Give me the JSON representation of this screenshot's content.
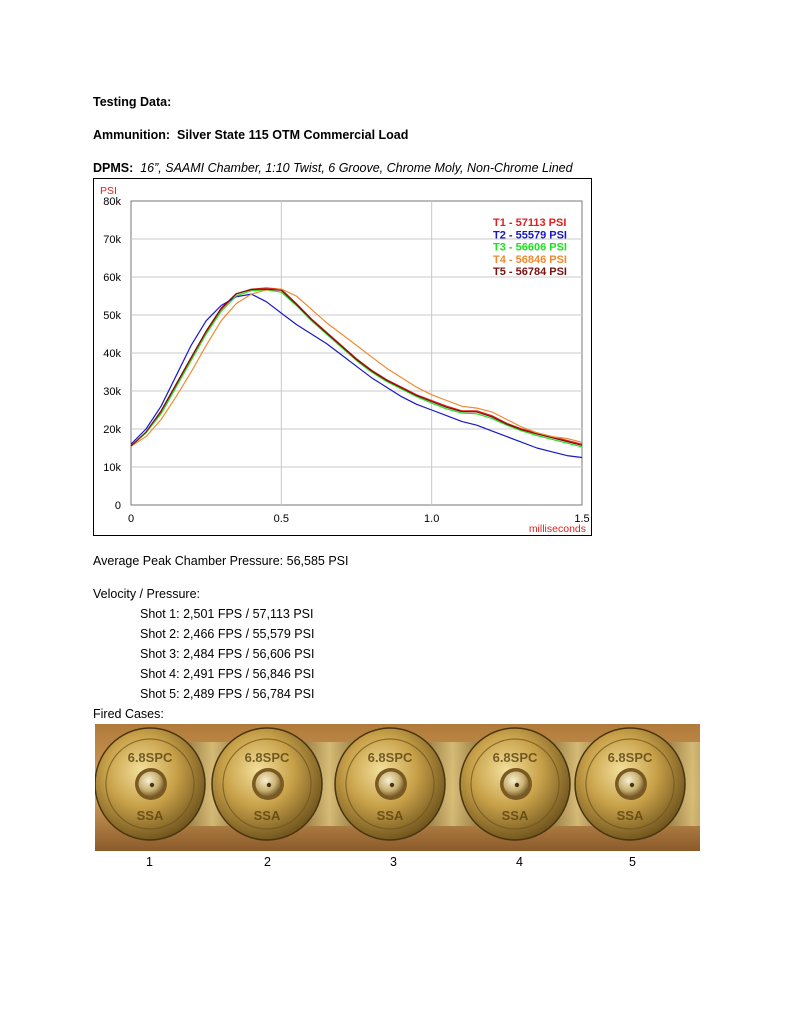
{
  "heading": "Testing Data:",
  "ammunition": {
    "label": "Ammunition:",
    "value": "Silver State 115 OTM Commercial Load"
  },
  "rifle": {
    "label": "DPMS:",
    "value": "16”, SAAMI Chamber, 1:10 Twist, 6 Groove, Chrome Moly, Non-Chrome Lined"
  },
  "chart_data": {
    "type": "line",
    "title": "",
    "ylabel": "PSI",
    "xlabel": "milliseconds",
    "xlim": [
      0,
      1.5
    ],
    "ylim": [
      0,
      80000
    ],
    "x_ticks": [
      "0",
      "0.5",
      "1.0",
      "1.5"
    ],
    "y_ticks": [
      "0",
      "10k",
      "20k",
      "30k",
      "40k",
      "50k",
      "60k",
      "70k",
      "80k"
    ],
    "grid": true,
    "legend_placement": "top-right",
    "series": [
      {
        "name": "T1 -  57113 PSI",
        "color": "#e02020",
        "x": [
          0,
          0.05,
          0.1,
          0.15,
          0.2,
          0.25,
          0.3,
          0.35,
          0.4,
          0.45,
          0.5,
          0.55,
          0.6,
          0.65,
          0.7,
          0.75,
          0.8,
          0.85,
          0.9,
          0.95,
          1.0,
          1.05,
          1.1,
          1.15,
          1.2,
          1.25,
          1.3,
          1.35,
          1.4,
          1.45,
          1.5
        ],
        "y": [
          15500,
          19000,
          24500,
          31500,
          38500,
          45500,
          51500,
          55500,
          56800,
          57100,
          56800,
          53000,
          49000,
          45500,
          42000,
          38500,
          35500,
          33000,
          31000,
          29000,
          27500,
          26000,
          24800,
          24800,
          23500,
          21500,
          20000,
          19000,
          18000,
          17000,
          16000
        ]
      },
      {
        "name": "T2 -  55579 PSI",
        "color": "#1818c8",
        "x": [
          0,
          0.05,
          0.1,
          0.15,
          0.2,
          0.25,
          0.3,
          0.35,
          0.4,
          0.45,
          0.5,
          0.55,
          0.6,
          0.65,
          0.7,
          0.75,
          0.8,
          0.85,
          0.9,
          0.95,
          1.0,
          1.05,
          1.1,
          1.15,
          1.2,
          1.25,
          1.3,
          1.35,
          1.4,
          1.45,
          1.5
        ],
        "y": [
          16000,
          20000,
          26000,
          34000,
          42000,
          48500,
          52500,
          54800,
          55500,
          53500,
          50500,
          47500,
          45000,
          42500,
          39500,
          36500,
          33500,
          31000,
          28500,
          26500,
          25000,
          23500,
          22000,
          21000,
          19500,
          18000,
          16500,
          15000,
          14000,
          13000,
          12500
        ]
      },
      {
        "name": "T3 -  56606 PSI",
        "color": "#20e020",
        "x": [
          0,
          0.05,
          0.1,
          0.15,
          0.2,
          0.25,
          0.3,
          0.35,
          0.4,
          0.45,
          0.5,
          0.55,
          0.6,
          0.65,
          0.7,
          0.75,
          0.8,
          0.85,
          0.9,
          0.95,
          1.0,
          1.05,
          1.1,
          1.15,
          1.2,
          1.25,
          1.3,
          1.35,
          1.4,
          1.45,
          1.5
        ],
        "y": [
          15500,
          19000,
          24000,
          31000,
          38000,
          45000,
          51000,
          55000,
          56400,
          56600,
          56000,
          52500,
          48500,
          45000,
          41500,
          38000,
          35000,
          32500,
          30500,
          28500,
          26800,
          25300,
          24200,
          24000,
          22800,
          21000,
          19500,
          18300,
          17300,
          16300,
          15300
        ]
      },
      {
        "name": "T4 -  56846 PSI",
        "color": "#f08a30",
        "x": [
          0,
          0.05,
          0.1,
          0.15,
          0.2,
          0.25,
          0.3,
          0.35,
          0.4,
          0.45,
          0.5,
          0.55,
          0.6,
          0.65,
          0.7,
          0.75,
          0.8,
          0.85,
          0.9,
          0.95,
          1.0,
          1.05,
          1.1,
          1.15,
          1.2,
          1.25,
          1.3,
          1.35,
          1.4,
          1.45,
          1.5
        ],
        "y": [
          15500,
          18000,
          22500,
          28500,
          35000,
          42000,
          48500,
          53000,
          55500,
          56600,
          56846,
          55000,
          51500,
          48000,
          45000,
          42000,
          39000,
          36000,
          33500,
          31000,
          29000,
          27500,
          26000,
          25500,
          24500,
          22500,
          20500,
          19000,
          18000,
          17500,
          16500
        ]
      },
      {
        "name": "T5 -  56784 PSI",
        "color": "#7a1010",
        "x": [
          0,
          0.05,
          0.1,
          0.15,
          0.2,
          0.25,
          0.3,
          0.35,
          0.4,
          0.45,
          0.5,
          0.55,
          0.6,
          0.65,
          0.7,
          0.75,
          0.8,
          0.85,
          0.9,
          0.95,
          1.0,
          1.05,
          1.1,
          1.15,
          1.2,
          1.25,
          1.3,
          1.35,
          1.4,
          1.45,
          1.5
        ],
        "y": [
          15500,
          19200,
          24800,
          31800,
          38800,
          45800,
          51800,
          55600,
          56700,
          56784,
          56500,
          52800,
          48800,
          45300,
          41800,
          38300,
          35300,
          32800,
          30800,
          28800,
          27200,
          25700,
          24600,
          24500,
          23200,
          21300,
          19800,
          18700,
          17700,
          16700,
          15700
        ]
      }
    ]
  },
  "average": "Average Peak Chamber Pressure: 56,585 PSI",
  "velocity": {
    "heading": "Velocity / Pressure:",
    "shots": [
      "Shot 1: 2,501 FPS / 57,113 PSI",
      "Shot 2: 2,466 FPS / 55,579 PSI",
      "Shot 3: 2,484 FPS / 56,606 PSI",
      "Shot 4: 2,491 FPS / 56,846 PSI",
      "Shot 5: 2,489 FPS / 56,784 PSI"
    ]
  },
  "fired_cases": {
    "heading": "Fired Cases:",
    "headstamp_top": "6.8SPC",
    "headstamp_bottom": "SSA",
    "numbers": [
      "1",
      "2",
      "3",
      "4",
      "5"
    ]
  }
}
